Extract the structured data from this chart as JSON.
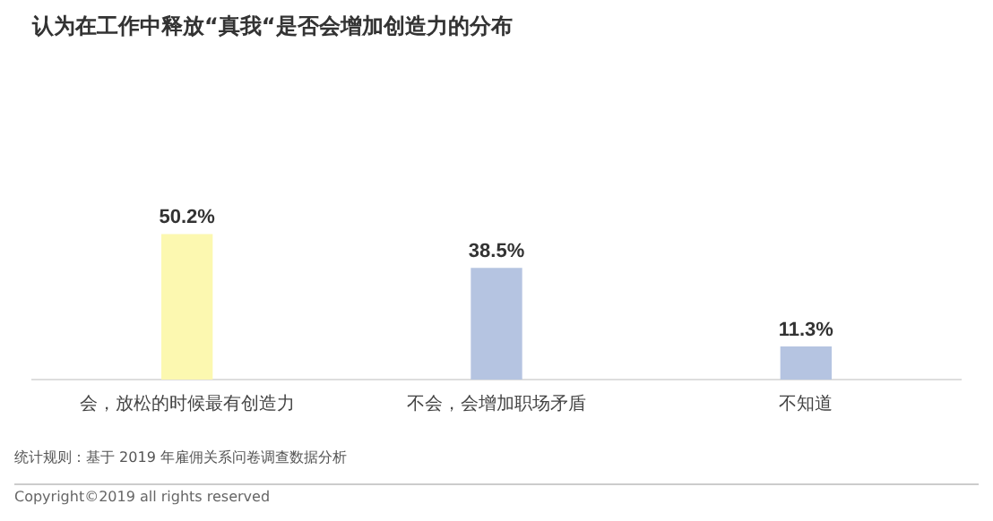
{
  "chart_data": {
    "type": "bar",
    "title": "认为在工作中释放“真我“是否会增加创造力的分布",
    "categories": [
      "会，放松的时候最有创造力",
      "不会，会增加职场矛盾",
      "不知道"
    ],
    "values": [
      50.2,
      38.5,
      11.3
    ],
    "value_labels": [
      "50.2%",
      "38.5%",
      "11.3%"
    ],
    "colors": [
      "#fcf8b0",
      "#b5c4e1",
      "#b5c4e1"
    ],
    "grid": false,
    "legend": false,
    "tick_labels": "x",
    "annotations": [
      "统计规则：基于 2019 年雇佣关系问卷调查数据分析",
      "Copyright©2019 all rights reserved"
    ]
  }
}
